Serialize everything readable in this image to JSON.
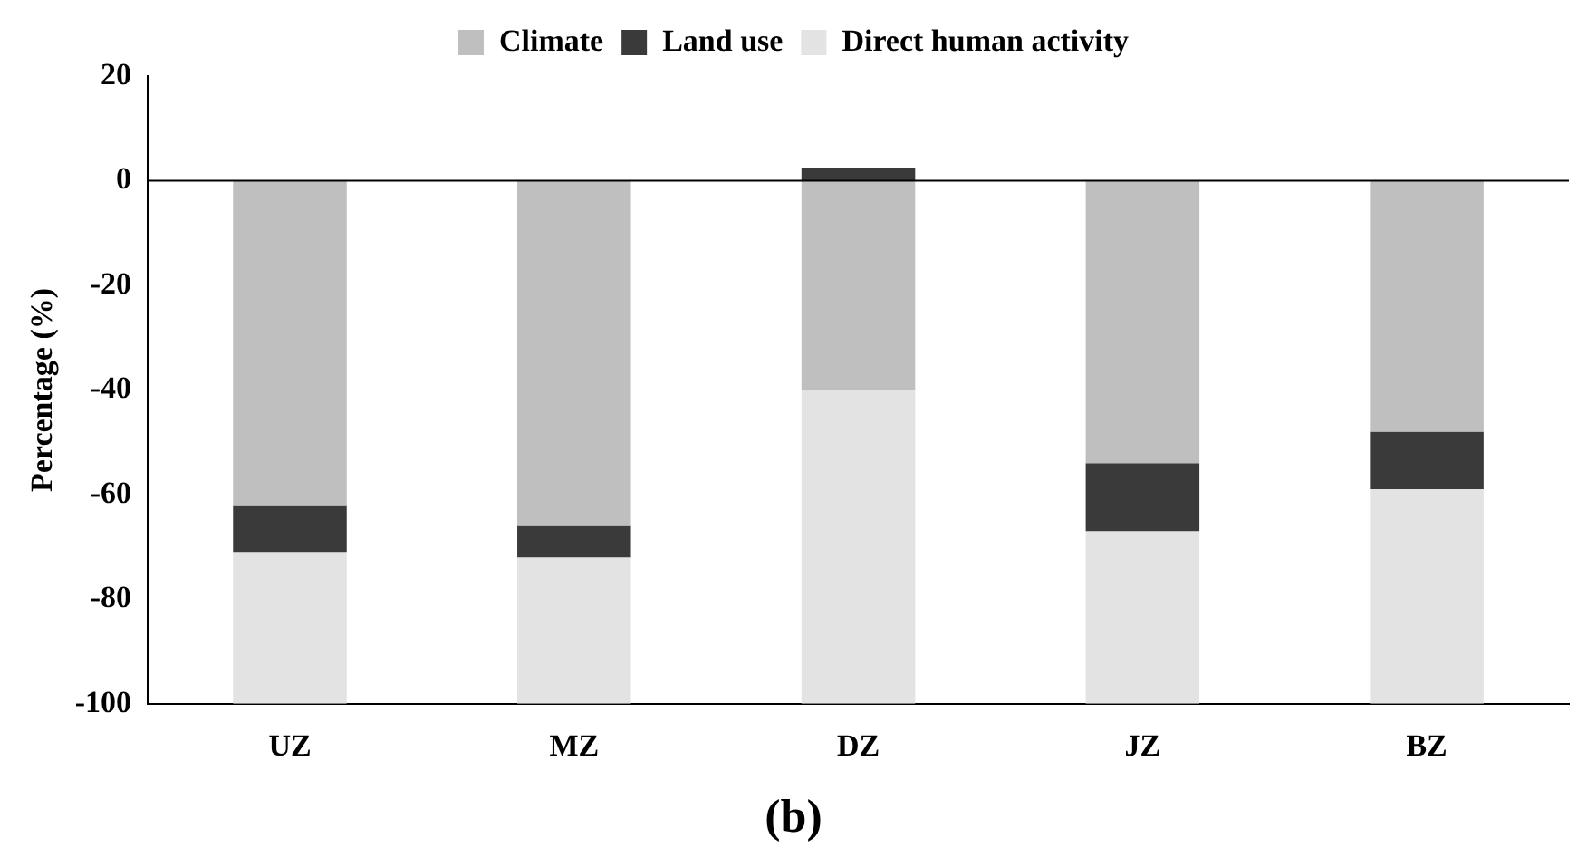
{
  "chart_data": {
    "type": "bar",
    "title": "(b)",
    "ylabel": "Percentage (%)",
    "stacked": true,
    "categories": [
      "UZ",
      "MZ",
      "DZ",
      "JZ",
      "BZ"
    ],
    "series": [
      {
        "name": "Climate",
        "color": "#bfbfbf",
        "values": [
          -62,
          -66,
          -40,
          -54,
          -48
        ]
      },
      {
        "name": "Land use",
        "color": "#3a3a3a",
        "values": [
          -9,
          -6,
          2.5,
          -13,
          -11
        ]
      },
      {
        "name": "Direct human activity",
        "color": "#e3e3e3",
        "values": [
          -29,
          -28,
          -60,
          -33,
          -41
        ]
      }
    ],
    "ylim": [
      -100,
      20
    ],
    "yticks": [
      -100,
      -80,
      -60,
      -40,
      -20,
      0,
      20
    ],
    "grid": false,
    "legend": "top",
    "ref_lines": [
      {
        "axis": "y",
        "value": 0
      }
    ]
  }
}
